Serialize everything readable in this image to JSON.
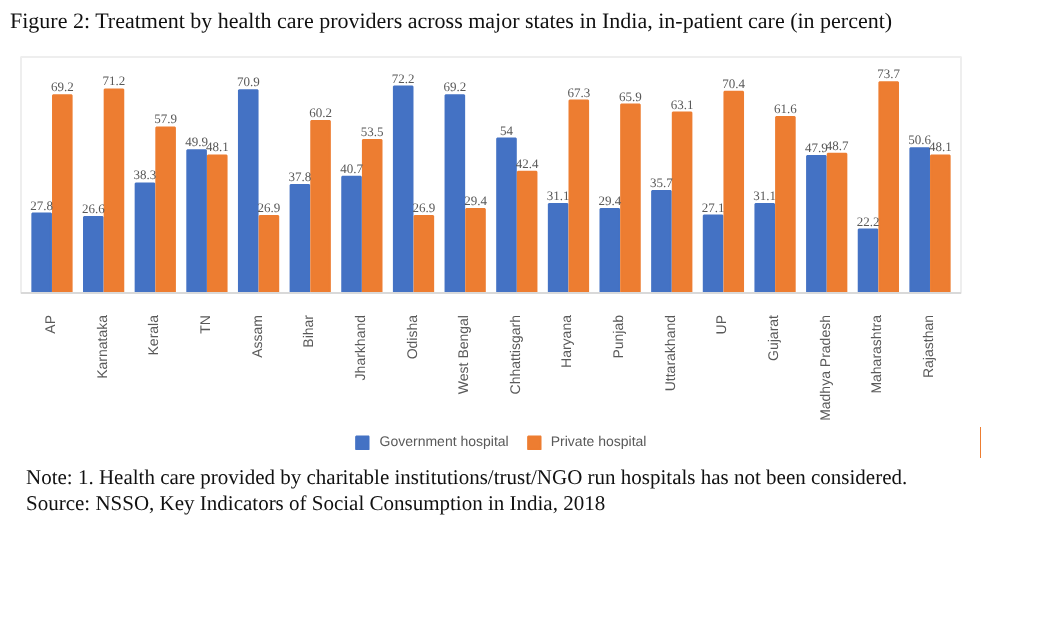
{
  "chart_data": {
    "type": "bar",
    "title": "Figure 2: Treatment by health care providers across major states in India, in-patient care (in percent)",
    "categories": [
      "AP",
      "Karnataka",
      "Kerala",
      "TN",
      "Assam",
      "Bihar",
      "Jharkhand",
      "Odisha",
      "West Bengal",
      "Chhattisgarh",
      "Haryana",
      "Punjab",
      "Uttarakhand",
      "UP",
      "Gujarat",
      "Madhya Pradesh",
      "Maharashtra",
      "Rajasthan"
    ],
    "series": [
      {
        "name": "Government hospital",
        "color": "#4472c4",
        "values": [
          27.8,
          26.6,
          38.3,
          49.9,
          70.9,
          37.8,
          40.7,
          72.2,
          69.2,
          54,
          31.1,
          29.4,
          35.7,
          27.1,
          31.1,
          47.9,
          22.2,
          50.6
        ]
      },
      {
        "name": "Private hospital",
        "color": "#ed7d31",
        "values": [
          69.2,
          71.2,
          57.9,
          48.1,
          26.9,
          60.2,
          53.5,
          26.9,
          29.4,
          42.4,
          67.3,
          65.9,
          63.1,
          70.4,
          61.6,
          48.7,
          73.7,
          48.1
        ]
      }
    ],
    "data_labels": true,
    "legend": "bottom",
    "annotations": [
      "Note: 1. Health care provided by charitable institutions/trust/NGO run hospitals has not been considered.",
      "Source: NSSO, Key Indicators of Social Consumption in India, 2018"
    ]
  }
}
